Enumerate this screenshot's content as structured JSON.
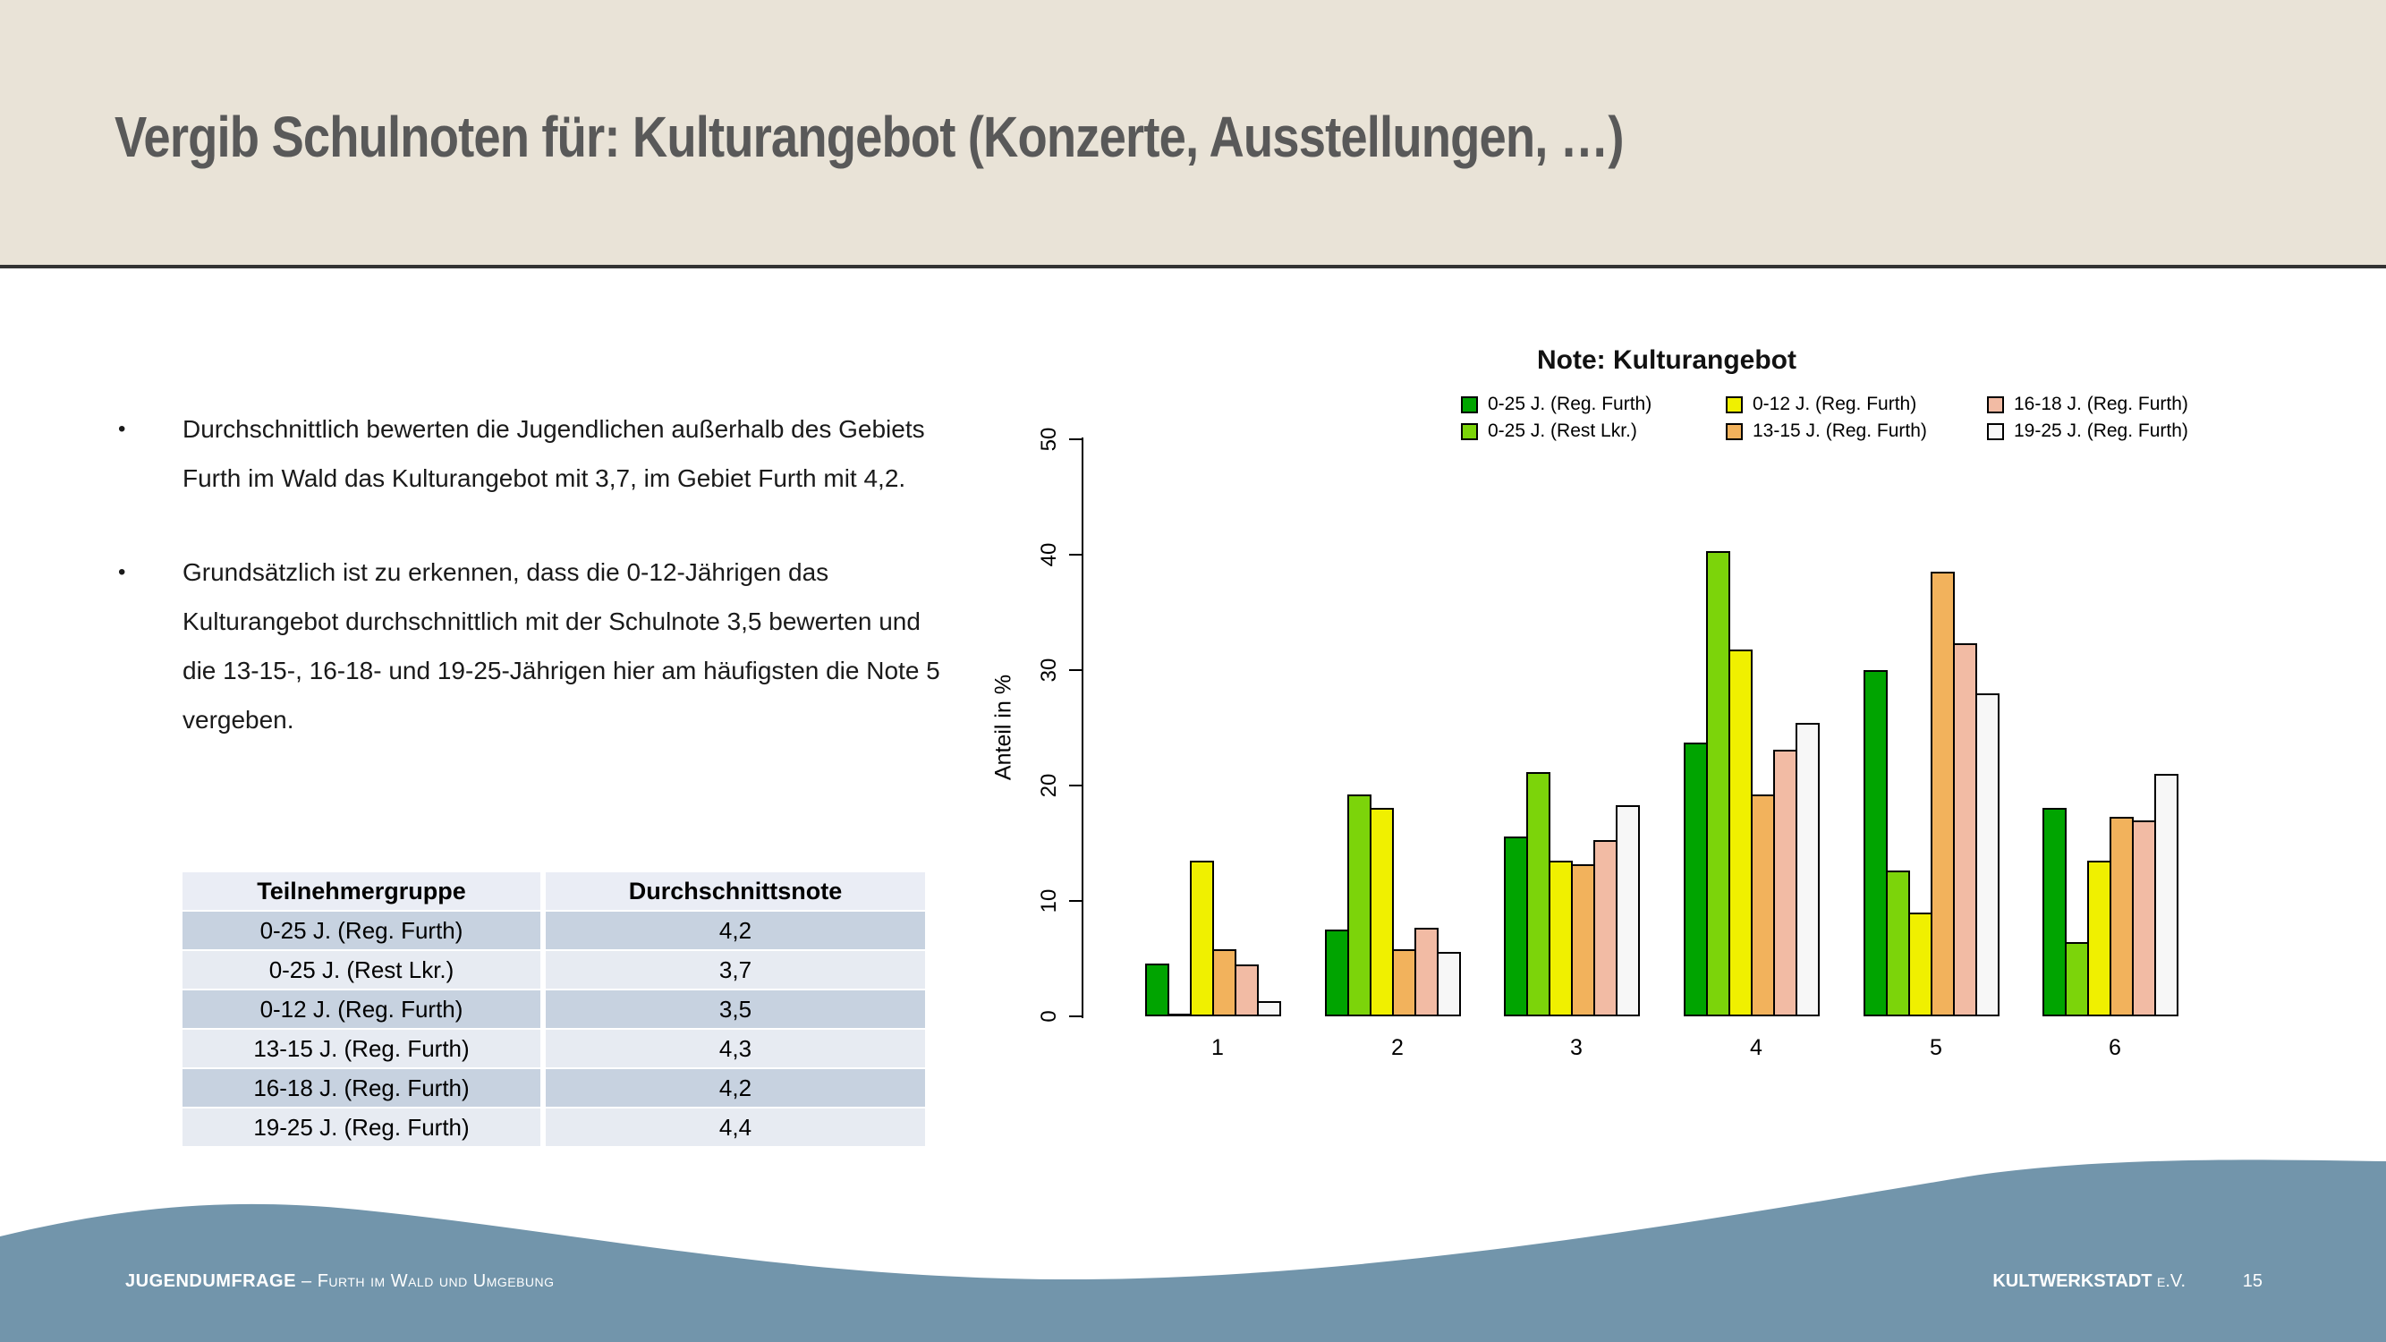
{
  "slide": {
    "title": "Vergib Schulnoten für: Kulturangebot (Konzerte, Ausstellungen, …)"
  },
  "bullets": [
    "Durchschnittlich bewerten die Jugendlichen außerhalb des Gebiets Furth im Wald das Kulturangebot mit 3,7, im Gebiet Furth mit 4,2.",
    "Grundsätzlich ist zu erkennen, dass die 0-12-Jährigen das Kulturangebot durchschnittlich mit der Schulnote 3,5 bewerten und die 13-15-, 16-18- und 19-25-Jährigen hier am häufigsten die Note 5 vergeben."
  ],
  "table": {
    "headers": [
      "Teilnehmergruppe",
      "Durchschnittsnote"
    ],
    "rows": [
      [
        "0-25 J. (Reg. Furth)",
        "4,2"
      ],
      [
        "0-25 J. (Rest Lkr.)",
        "3,7"
      ],
      [
        "0-12 J. (Reg. Furth)",
        "3,5"
      ],
      [
        "13-15 J. (Reg. Furth)",
        "4,3"
      ],
      [
        "16-18 J. (Reg. Furth)",
        "4,2"
      ],
      [
        "19-25 J. (Reg. Furth)",
        "4,4"
      ]
    ]
  },
  "chart_data": {
    "type": "bar",
    "title": "Note: Kulturangebot",
    "xlabel": "",
    "ylabel": "Anteil in %",
    "ylim": [
      0,
      50
    ],
    "yticks": [
      0,
      10,
      20,
      30,
      40,
      50
    ],
    "grid": false,
    "legend_position": "top",
    "bar_border_color": "#000000",
    "categories": [
      "1",
      "2",
      "3",
      "4",
      "5",
      "6"
    ],
    "series": [
      {
        "name": "0-25 J. (Reg. Furth)",
        "color": "#00A400",
        "values": [
          4.6,
          7.5,
          15.6,
          23.7,
          30.0,
          18.1
        ]
      },
      {
        "name": "0-25 J. (Rest Lkr.)",
        "color": "#7CD40A",
        "values": [
          0.0,
          19.2,
          21.2,
          40.3,
          12.6,
          6.4
        ]
      },
      {
        "name": "0-12 J. (Reg. Furth)",
        "color": "#F0F000",
        "values": [
          13.5,
          18.1,
          13.5,
          31.8,
          9.0,
          13.5
        ]
      },
      {
        "name": "13-15 J. (Reg. Furth)",
        "color": "#F2B25C",
        "values": [
          5.8,
          5.8,
          13.2,
          19.2,
          38.5,
          17.3
        ]
      },
      {
        "name": "16-18 J. (Reg. Furth)",
        "color": "#F2BBA4",
        "values": [
          4.5,
          7.7,
          15.3,
          23.1,
          32.3,
          17.0
        ]
      },
      {
        "name": "19-25 J. (Reg. Furth)",
        "color": "#F7F7F7",
        "values": [
          1.3,
          5.6,
          18.3,
          25.4,
          28.0,
          21.0
        ]
      }
    ]
  },
  "footer": {
    "left_primary": "JUGENDUMFRAGE",
    "left_secondary": " – Furth im Wald und Umgebung",
    "right_primary": "KULTWERKSTADT",
    "right_secondary": " e.V.",
    "page": "15"
  },
  "ui": {
    "bullet_char": "•"
  },
  "colors": {
    "header_bg": "#E9E3D7",
    "header_rule": "#333333",
    "title_text": "#595959",
    "footer_wave": "#7295AB",
    "table_header_bg": "#EAEDF5",
    "table_row_dark": "#C7D2E0",
    "table_row_light": "#E7EBF2"
  }
}
